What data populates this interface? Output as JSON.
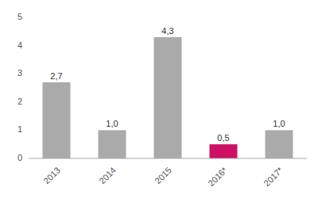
{
  "chart_data": {
    "type": "bar",
    "categories": [
      "2013",
      "2014",
      "2015",
      "2016*",
      "2017*"
    ],
    "values": [
      2.7,
      1.0,
      4.3,
      0.5,
      1.0
    ],
    "value_labels": [
      "2,7",
      "1,0",
      "4,3",
      "0,5",
      "1,0"
    ],
    "data_labels": true,
    "colors": [
      "#aaaaaa",
      "#aaaaaa",
      "#aaaaaa",
      "#cc1166",
      "#aaaaaa"
    ],
    "ylim": [
      0,
      5
    ],
    "yticks": [
      0,
      1,
      2,
      3,
      4,
      5
    ],
    "grid": false
  }
}
